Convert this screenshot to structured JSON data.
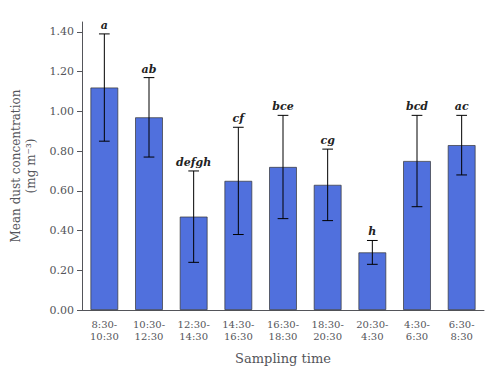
{
  "chart_data": {
    "type": "bar",
    "categories": [
      "8:30-\n10:30",
      "10:30-\n12:30",
      "12:30-\n14:30",
      "14:30-\n16:30",
      "16:30-\n18:30",
      "18:30-\n20:30",
      "20:30-\n4:30",
      "4:30-\n6:30",
      "6:30-\n8:30"
    ],
    "values": [
      1.12,
      0.97,
      0.47,
      0.65,
      0.72,
      0.63,
      0.29,
      0.75,
      0.83
    ],
    "errors": [
      0.27,
      0.2,
      0.23,
      0.27,
      0.26,
      0.18,
      0.06,
      0.23,
      0.15
    ],
    "annotations": [
      "a",
      "ab",
      "defgh",
      "cf",
      "bce",
      "cg",
      "h",
      "bcd",
      "ac"
    ],
    "xlabel": "Sampling time",
    "ylabel": "Mean dust concentration\n(mg m⁻³)",
    "ylim": [
      0.0,
      1.45
    ],
    "yticks": [
      {
        "value": 0.0,
        "label": "0.00"
      },
      {
        "value": 0.2,
        "label": "0.20"
      },
      {
        "value": 0.4,
        "label": "0.40"
      },
      {
        "value": 0.6,
        "label": "0.60"
      },
      {
        "value": 0.8,
        "label": "0.80"
      },
      {
        "value": 1.0,
        "label": "1.00"
      },
      {
        "value": 1.2,
        "label": "1.20"
      },
      {
        "value": 1.4,
        "label": "1.40"
      }
    ],
    "grid": false
  }
}
